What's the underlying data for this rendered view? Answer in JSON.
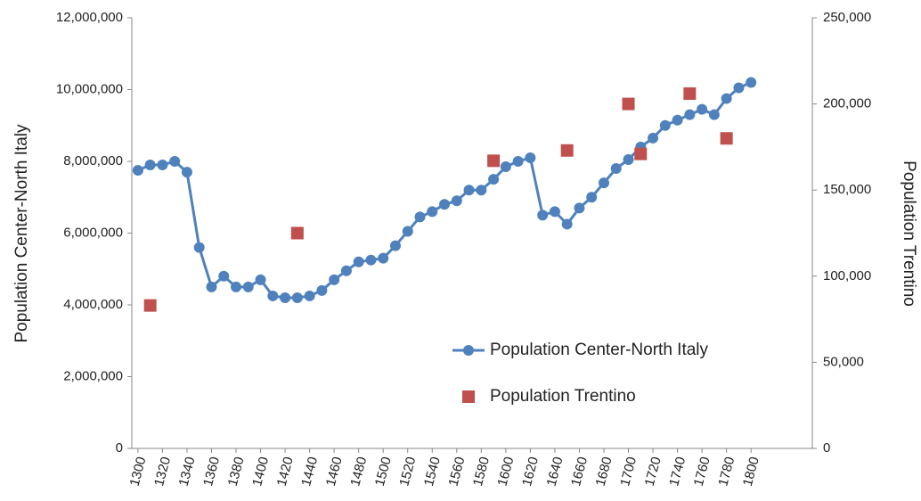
{
  "chart_data": {
    "type": "line",
    "y_label": "Population Center-North Italy",
    "y2_label": "Population Trentino",
    "xlim": [
      1295,
      1850
    ],
    "xticks": [
      1300,
      1320,
      1340,
      1360,
      1380,
      1400,
      1420,
      1440,
      1460,
      1480,
      1500,
      1520,
      1540,
      1560,
      1580,
      1600,
      1620,
      1640,
      1660,
      1680,
      1700,
      1720,
      1740,
      1760,
      1780,
      1800
    ],
    "ylim": [
      0,
      12000000
    ],
    "yticks": [
      0,
      {
        "value": 2000000,
        "label": "2,000,000"
      },
      {
        "value": 4000000,
        "label": "4,000,000"
      },
      {
        "value": 6000000,
        "label": "6,000,000"
      },
      {
        "value": 8000000,
        "label": "8,000,000"
      },
      {
        "value": 10000000,
        "label": "10,000,000"
      },
      {
        "value": 12000000,
        "label": "12,000,000"
      }
    ],
    "y2lim": [
      0,
      250000
    ],
    "y2ticks": [
      0,
      {
        "value": 50000,
        "label": "50,000"
      },
      {
        "value": 100000,
        "label": "100,000"
      },
      {
        "value": 150000,
        "label": "150,000"
      },
      {
        "value": 200000,
        "label": "200,000"
      },
      {
        "value": 250000,
        "label": "250,000"
      }
    ],
    "legend": "lower right",
    "series": [
      {
        "name": "Population Center-North Italy",
        "type": "line",
        "color": "#4f81bd",
        "x": [
          1300,
          1310,
          1320,
          1330,
          1340,
          1350,
          1360,
          1370,
          1380,
          1390,
          1400,
          1410,
          1420,
          1430,
          1440,
          1450,
          1460,
          1470,
          1480,
          1490,
          1500,
          1510,
          1520,
          1530,
          1540,
          1550,
          1560,
          1570,
          1580,
          1590,
          1600,
          1610,
          1620,
          1630,
          1640,
          1650,
          1660,
          1670,
          1680,
          1690,
          1700,
          1710,
          1720,
          1730,
          1740,
          1750,
          1760,
          1770,
          1780,
          1790,
          1800
        ],
        "values": [
          7750000,
          7900000,
          7900000,
          8000000,
          7700000,
          5600000,
          4500000,
          4800000,
          4500000,
          4500000,
          4700000,
          4250000,
          4200000,
          4200000,
          4250000,
          4400000,
          4700000,
          4950000,
          5200000,
          5250000,
          5300000,
          5650000,
          6050000,
          6450000,
          6600000,
          6800000,
          6900000,
          7200000,
          7200000,
          7500000,
          7850000,
          8000000,
          8100000,
          6500000,
          6600000,
          6250000,
          6700000,
          7000000,
          7400000,
          7800000,
          8050000,
          8400000,
          8650000,
          9000000,
          9150000,
          9300000,
          9450000,
          9300000,
          9750000,
          10050000,
          10200000
        ]
      },
      {
        "name": "Population Trentino",
        "type": "scatter",
        "axis": "y2",
        "color": "#c0504d",
        "x": [
          1310,
          1430,
          1590,
          1650,
          1700,
          1710,
          1750,
          1780
        ],
        "values": [
          83000,
          125000,
          167000,
          173000,
          200000,
          171000,
          206000,
          180000
        ]
      }
    ]
  }
}
